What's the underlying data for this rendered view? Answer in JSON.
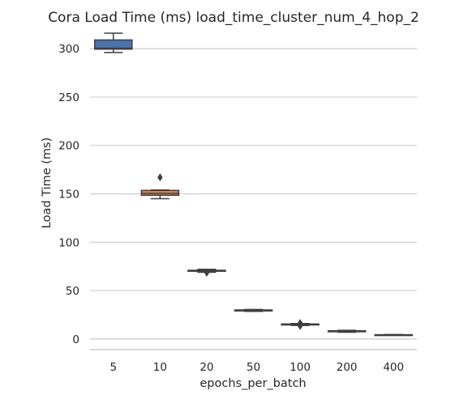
{
  "chart_data": {
    "type": "box",
    "title": "Cora Load Time (ms) load_time_cluster_num_4_hop_2",
    "xlabel": "epochs_per_batch",
    "ylabel": "Load Time (ms)",
    "categories": [
      "5",
      "10",
      "20",
      "50",
      "100",
      "200",
      "400"
    ],
    "yticks": [
      0,
      50,
      100,
      150,
      200,
      250,
      300
    ],
    "ylim": [
      -11,
      316
    ],
    "grid": "horizontal",
    "boxes": [
      {
        "category": "5",
        "whislo": 296,
        "q1": 299.5,
        "med": 300.5,
        "q3": 309,
        "whishi": 316,
        "fliers": [],
        "color": "#4c72b0"
      },
      {
        "category": "10",
        "whislo": 145,
        "q1": 148.5,
        "med": 150.5,
        "q3": 153.5,
        "whishi": 154,
        "fliers": [
          167
        ],
        "color": "#dd8452"
      },
      {
        "category": "20",
        "whislo": 69,
        "q1": 70,
        "med": 70.5,
        "q3": 71,
        "whishi": 72,
        "fliers": [
          68.5
        ],
        "color": "#55a868"
      },
      {
        "category": "50",
        "whislo": 28.5,
        "q1": 29,
        "med": 29.5,
        "q3": 30,
        "whishi": 30.5,
        "fliers": [],
        "color": "#c44e52"
      },
      {
        "category": "100",
        "whislo": 14,
        "q1": 14.5,
        "med": 15,
        "q3": 15.5,
        "whishi": 16,
        "fliers": [
          16.5,
          13.5
        ],
        "color": "#8172b3"
      },
      {
        "category": "200",
        "whislo": 7,
        "q1": 7.5,
        "med": 8,
        "q3": 8.5,
        "whishi": 9,
        "fliers": [],
        "color": "#937860"
      },
      {
        "category": "400",
        "whislo": 3.8,
        "q1": 4,
        "med": 4.2,
        "q3": 4.4,
        "whishi": 4.6,
        "fliers": [],
        "color": "#da8bc3"
      }
    ]
  }
}
